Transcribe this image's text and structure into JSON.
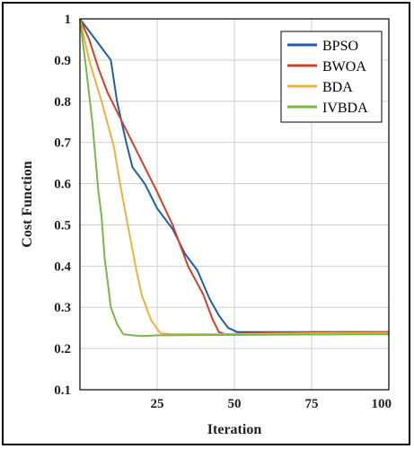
{
  "chart_data": {
    "type": "line",
    "xlabel": "Iteration",
    "ylabel": "Cost Function",
    "xlim": [
      0,
      100
    ],
    "ylim": [
      0.1,
      1
    ],
    "xticks": [
      25,
      50,
      75,
      100
    ],
    "xtick_labels": [
      "25",
      "50",
      "75",
      "100"
    ],
    "yticks": [
      0.1,
      0.2,
      0.3,
      0.4,
      0.5,
      0.6,
      0.7,
      0.8,
      0.9,
      1
    ],
    "ytick_labels": [
      "0.1",
      "0.2",
      "0.3",
      "0.4",
      "0.5",
      "0.6",
      "0.7",
      "0.8",
      "0.9",
      "1"
    ],
    "grid": true,
    "legend_position": "top-right",
    "series": [
      {
        "name": "BPSO",
        "color": "#1f5fa8",
        "points": [
          [
            0,
            1
          ],
          [
            5,
            0.95
          ],
          [
            10,
            0.9
          ],
          [
            12,
            0.8
          ],
          [
            15,
            0.7
          ],
          [
            17,
            0.64
          ],
          [
            21,
            0.6
          ],
          [
            25,
            0.54
          ],
          [
            30,
            0.49
          ],
          [
            34,
            0.43
          ],
          [
            38,
            0.39
          ],
          [
            42,
            0.32
          ],
          [
            45,
            0.28
          ],
          [
            48,
            0.25
          ],
          [
            51,
            0.24
          ],
          [
            55,
            0.24
          ],
          [
            75,
            0.24
          ],
          [
            100,
            0.24
          ]
        ]
      },
      {
        "name": "BWOA",
        "color": "#d0402a",
        "points": [
          [
            0,
            1
          ],
          [
            3,
            0.95
          ],
          [
            6,
            0.88
          ],
          [
            9,
            0.82
          ],
          [
            13,
            0.76
          ],
          [
            17,
            0.7
          ],
          [
            21,
            0.64
          ],
          [
            25,
            0.58
          ],
          [
            30,
            0.5
          ],
          [
            35,
            0.4
          ],
          [
            40,
            0.33
          ],
          [
            43,
            0.27
          ],
          [
            45,
            0.24
          ],
          [
            47,
            0.235
          ],
          [
            60,
            0.238
          ],
          [
            75,
            0.24
          ],
          [
            100,
            0.24
          ]
        ]
      },
      {
        "name": "BDA",
        "color": "#f0b03c",
        "points": [
          [
            0,
            1
          ],
          [
            3,
            0.9
          ],
          [
            7,
            0.8
          ],
          [
            11,
            0.69
          ],
          [
            13,
            0.6
          ],
          [
            16,
            0.48
          ],
          [
            18,
            0.4
          ],
          [
            20,
            0.33
          ],
          [
            23,
            0.27
          ],
          [
            26,
            0.237
          ],
          [
            30,
            0.235
          ],
          [
            50,
            0.235
          ],
          [
            75,
            0.237
          ],
          [
            100,
            0.238
          ]
        ]
      },
      {
        "name": "IVBDA",
        "color": "#7ab648",
        "points": [
          [
            0,
            1
          ],
          [
            2,
            0.88
          ],
          [
            4,
            0.75
          ],
          [
            6,
            0.58
          ],
          [
            7,
            0.52
          ],
          [
            8,
            0.42
          ],
          [
            9,
            0.36
          ],
          [
            10,
            0.3
          ],
          [
            12,
            0.26
          ],
          [
            14,
            0.235
          ],
          [
            17,
            0.232
          ],
          [
            20,
            0.23
          ],
          [
            25,
            0.232
          ],
          [
            50,
            0.233
          ],
          [
            75,
            0.234
          ],
          [
            100,
            0.235
          ]
        ]
      }
    ]
  }
}
